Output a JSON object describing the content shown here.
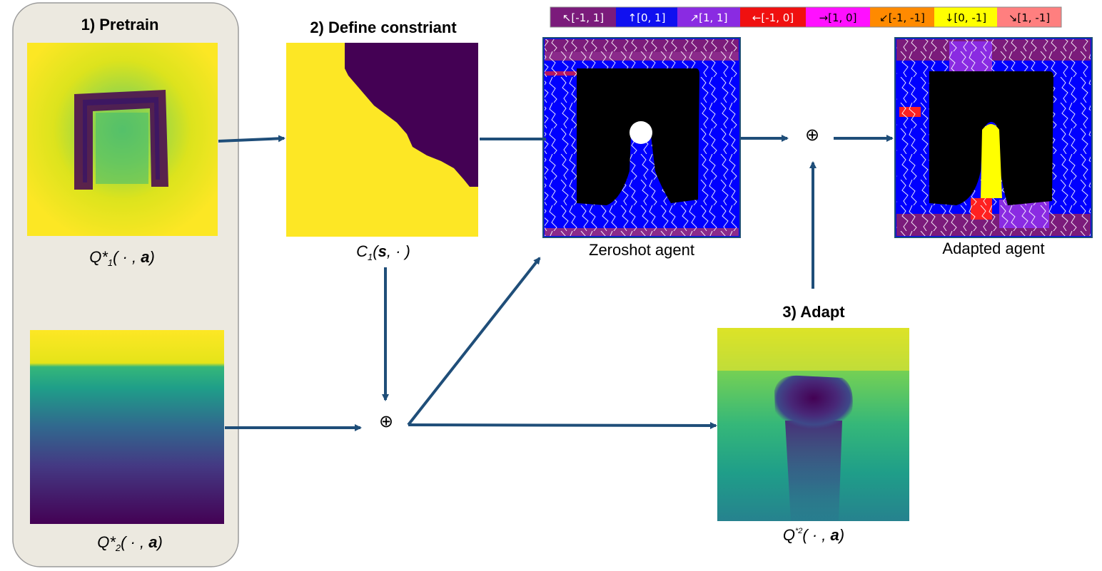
{
  "steps": {
    "pretrain": "1)  Pretrain",
    "define_constraint": "2) Define constriant",
    "adapt": "3) Adapt"
  },
  "captions": {
    "q1": {
      "main": "Q*",
      "sub": "1",
      "rest": "( · , ",
      "bold": "a",
      "close": ")"
    },
    "q2": {
      "main": "Q*",
      "sub": "2",
      "rest": "( · , ",
      "bold": "a",
      "close": ")"
    },
    "c1": {
      "main": "C",
      "sub": "1",
      "rest": "(",
      "bold": "s",
      "close": ",  · )"
    },
    "q2_adapted": {
      "main": "Q",
      "sub": "*2",
      "rest": "( · , ",
      "bold": "a",
      "close": ")"
    },
    "zeroshot": "Zeroshot agent",
    "adapted": "Adapted agent"
  },
  "combine_symbol": "⊕",
  "legend": [
    {
      "label": "↖[-1, 1]",
      "bg": "#7b1b7b",
      "fg": "#ffffff"
    },
    {
      "label": "↑[0, 1]",
      "bg": "#1010f0",
      "fg": "#ffffff"
    },
    {
      "label": "↗[1, 1]",
      "bg": "#8a2be2",
      "fg": "#ffffff"
    },
    {
      "label": "←[-1, 0]",
      "bg": "#f01010",
      "fg": "#ffffff"
    },
    {
      "label": "→[1, 0]",
      "bg": "#ff10ff",
      "fg": "#000000"
    },
    {
      "label": "↙[-1, -1]",
      "bg": "#ff8a00",
      "fg": "#000000"
    },
    {
      "label": "↓[0, -1]",
      "bg": "#ffff00",
      "fg": "#000000"
    },
    {
      "label": "↘[1, -1]",
      "bg": "#ff7f7f",
      "fg": "#000000"
    }
  ],
  "colors": {
    "arrow": "#1f4e79",
    "panel_bg": "#ece9e0",
    "panel_border": "#9a9a9a",
    "viridis_yellow": "#fde725",
    "viridis_teal": "#20a486",
    "viridis_blue": "#31688e",
    "viridis_purple": "#440154",
    "agent_black": "#000000",
    "agent_blue": "#0000ff",
    "trajectory": "#ffffff"
  }
}
